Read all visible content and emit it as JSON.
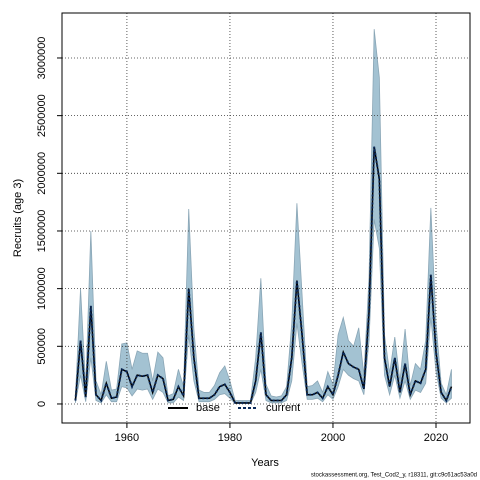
{
  "chart_data": {
    "type": "line",
    "xlabel": "Years",
    "ylabel": "Recruits (age 3)",
    "footer": "stockassessment.org, Test_Cod2_y, r18311, git:c9c61ac53a0d",
    "x": [
      1950,
      1951,
      1952,
      1953,
      1954,
      1955,
      1956,
      1957,
      1958,
      1959,
      1960,
      1961,
      1962,
      1963,
      1964,
      1965,
      1966,
      1967,
      1968,
      1969,
      1970,
      1971,
      1972,
      1973,
      1974,
      1975,
      1976,
      1977,
      1978,
      1979,
      1980,
      1981,
      1982,
      1983,
      1984,
      1985,
      1986,
      1987,
      1988,
      1989,
      1990,
      1991,
      1992,
      1993,
      1994,
      1995,
      1996,
      1997,
      1998,
      1999,
      2000,
      2001,
      2002,
      2003,
      2004,
      2005,
      2006,
      2007,
      2008,
      2009,
      2010,
      2011,
      2012,
      2013,
      2014,
      2015,
      2016,
      2017,
      2018,
      2019,
      2020,
      2021,
      2022,
      2023
    ],
    "band": {
      "color": "#a3c2d2",
      "edge": "#8aa6b6",
      "upper": [
        60000,
        1000000,
        150000,
        1500000,
        200000,
        80000,
        370000,
        120000,
        130000,
        520000,
        530000,
        300000,
        460000,
        440000,
        440000,
        200000,
        450000,
        400000,
        70000,
        90000,
        300000,
        150000,
        1690000,
        650000,
        120000,
        100000,
        100000,
        160000,
        270000,
        330000,
        200000,
        30000,
        30000,
        30000,
        30000,
        400000,
        1090000,
        170000,
        70000,
        60000,
        70000,
        150000,
        700000,
        1740000,
        950000,
        150000,
        160000,
        200000,
        100000,
        280000,
        170000,
        600000,
        750000,
        550000,
        500000,
        660000,
        250000,
        1100000,
        3250000,
        2830000,
        600000,
        270000,
        580000,
        200000,
        650000,
        160000,
        350000,
        300000,
        550000,
        1700000,
        700000,
        180000,
        80000,
        300000
      ],
      "lower": [
        10000,
        250000,
        20000,
        400000,
        30000,
        10000,
        80000,
        20000,
        20000,
        150000,
        140000,
        70000,
        130000,
        120000,
        130000,
        40000,
        130000,
        100000,
        10000,
        10000,
        60000,
        30000,
        600000,
        200000,
        20000,
        20000,
        20000,
        40000,
        80000,
        90000,
        50000,
        3000,
        3000,
        3000,
        3000,
        100000,
        300000,
        30000,
        10000,
        10000,
        10000,
        30000,
        200000,
        700000,
        350000,
        40000,
        40000,
        50000,
        20000,
        80000,
        40000,
        150000,
        300000,
        250000,
        220000,
        200000,
        80000,
        550000,
        1600000,
        1350000,
        250000,
        80000,
        250000,
        50000,
        200000,
        40000,
        120000,
        100000,
        180000,
        750000,
        280000,
        50000,
        10000,
        50000
      ]
    },
    "series": [
      {
        "name": "base",
        "color": "#000000",
        "dash": false,
        "values": [
          30000,
          550000,
          60000,
          850000,
          80000,
          30000,
          180000,
          50000,
          60000,
          300000,
          280000,
          150000,
          250000,
          240000,
          250000,
          100000,
          250000,
          220000,
          30000,
          40000,
          150000,
          70000,
          1000000,
          400000,
          50000,
          50000,
          50000,
          80000,
          150000,
          170000,
          100000,
          10000,
          10000,
          10000,
          10000,
          200000,
          620000,
          80000,
          30000,
          30000,
          30000,
          80000,
          400000,
          1070000,
          600000,
          80000,
          80000,
          100000,
          50000,
          150000,
          80000,
          250000,
          450000,
          350000,
          320000,
          300000,
          130000,
          800000,
          2230000,
          1950000,
          400000,
          150000,
          400000,
          100000,
          350000,
          80000,
          200000,
          180000,
          300000,
          1120000,
          450000,
          100000,
          30000,
          150000
        ]
      },
      {
        "name": "current",
        "color": "#0b2a5a",
        "dash": true,
        "values": [
          30000,
          550000,
          60000,
          850000,
          80000,
          30000,
          180000,
          50000,
          60000,
          300000,
          280000,
          150000,
          250000,
          240000,
          250000,
          100000,
          250000,
          220000,
          30000,
          40000,
          150000,
          70000,
          1000000,
          400000,
          50000,
          50000,
          50000,
          80000,
          150000,
          170000,
          100000,
          10000,
          10000,
          10000,
          10000,
          200000,
          620000,
          80000,
          30000,
          30000,
          30000,
          80000,
          400000,
          1070000,
          600000,
          80000,
          80000,
          100000,
          50000,
          150000,
          80000,
          250000,
          450000,
          350000,
          320000,
          300000,
          130000,
          800000,
          2230000,
          1950000,
          400000,
          150000,
          400000,
          100000,
          350000,
          80000,
          200000,
          180000,
          300000,
          1120000,
          450000,
          100000,
          30000,
          150000
        ]
      }
    ],
    "xlim": [
      1947.4,
      2026.6
    ],
    "xticks": [
      1960,
      1980,
      2000,
      2020
    ],
    "ylim": [
      -165000,
      3390000
    ],
    "yticks": [
      0,
      500000,
      1000000,
      1500000,
      2000000,
      2500000,
      3000000
    ],
    "grid": true,
    "legend": "bottom"
  }
}
